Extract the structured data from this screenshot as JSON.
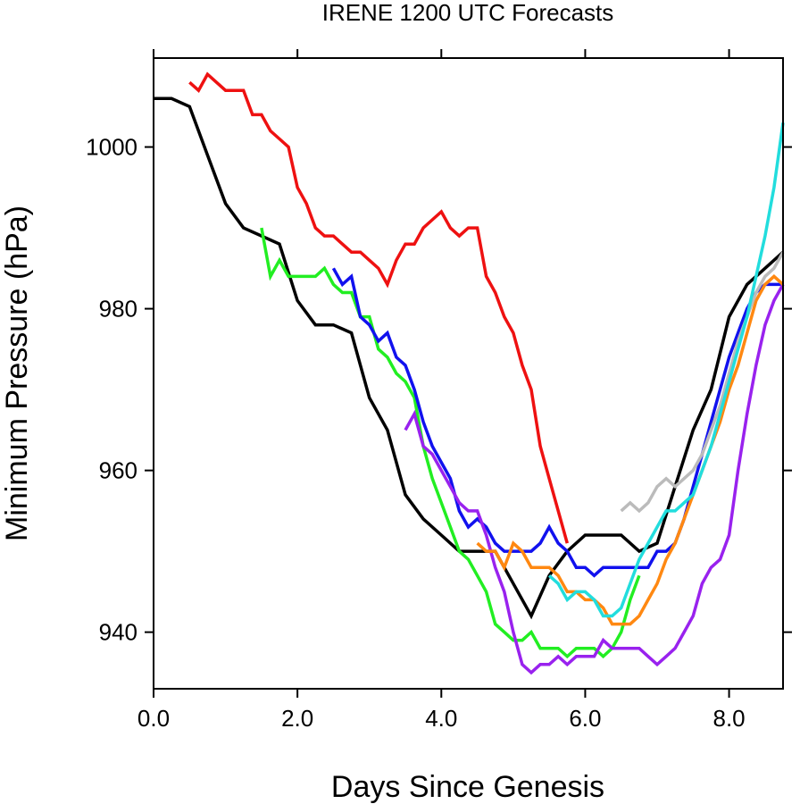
{
  "chart_data": {
    "type": "line",
    "title": "IRENE 1200 UTC Forecasts",
    "xlabel": "Days Since Genesis",
    "ylabel": "Minimum Pressure (hPa)",
    "xlim": [
      0,
      8.75
    ],
    "ylim": [
      933,
      1011
    ],
    "xticks": [
      0,
      2,
      4,
      6,
      8
    ],
    "xtick_labels": [
      "0.0",
      "2.0",
      "4.0",
      "6.0",
      "8.0"
    ],
    "yticks": [
      940,
      960,
      980,
      1000
    ],
    "ytick_labels": [
      "940",
      "960",
      "980",
      "1000"
    ],
    "grid": false,
    "series": [
      {
        "color": "#000000",
        "x": [
          0,
          0.25,
          0.5,
          0.75,
          1.0,
          1.25,
          1.5,
          1.75,
          2.0,
          2.25,
          2.5,
          2.75,
          3.0,
          3.25,
          3.5,
          3.75,
          4.0,
          4.25,
          4.5,
          4.75,
          5.0,
          5.25,
          5.5,
          5.75,
          6.0,
          6.25,
          6.5,
          6.75,
          7.0,
          7.25,
          7.5,
          7.75,
          8.0,
          8.25,
          8.5,
          8.75
        ],
        "y": [
          1006,
          1006,
          1005,
          999,
          993,
          990,
          989,
          988,
          981,
          978,
          978,
          977,
          969,
          965,
          957,
          954,
          952,
          950,
          950,
          950,
          946,
          942,
          947,
          950,
          952,
          952,
          952,
          950,
          951,
          958,
          965,
          970,
          979,
          983,
          985,
          987
        ]
      },
      {
        "color": "#ee1111",
        "x": [
          0.5,
          0.625,
          0.75,
          0.875,
          1.0,
          1.125,
          1.25,
          1.375,
          1.5,
          1.625,
          1.75,
          1.875,
          2.0,
          2.125,
          2.25,
          2.375,
          2.5,
          2.625,
          2.75,
          2.875,
          3.0,
          3.125,
          3.25,
          3.375,
          3.5,
          3.625,
          3.75,
          3.875,
          4.0,
          4.125,
          4.25,
          4.375,
          4.5,
          4.625,
          4.75,
          4.875,
          5.0,
          5.125,
          5.25,
          5.375,
          5.5,
          5.625,
          5.75
        ],
        "y": [
          1008,
          1007,
          1009,
          1008,
          1007,
          1007,
          1007,
          1004,
          1004,
          1002,
          1001,
          1000,
          995,
          993,
          990,
          989,
          989,
          988,
          987,
          987,
          986,
          985,
          983,
          986,
          988,
          988,
          990,
          991,
          992,
          990,
          989,
          990,
          990,
          984,
          982,
          979,
          977,
          973,
          970,
          963,
          959,
          955,
          951
        ]
      },
      {
        "color": "#22ee22",
        "x": [
          1.5,
          1.625,
          1.75,
          1.875,
          2.0,
          2.125,
          2.25,
          2.375,
          2.5,
          2.625,
          2.75,
          2.875,
          3.0,
          3.125,
          3.25,
          3.375,
          3.5,
          3.625,
          3.75,
          3.875,
          4.0,
          4.125,
          4.25,
          4.375,
          4.5,
          4.625,
          4.75,
          4.875,
          5.0,
          5.125,
          5.25,
          5.375,
          5.5,
          5.625,
          5.75,
          5.875,
          6.0,
          6.125,
          6.25,
          6.375,
          6.5,
          6.625,
          6.75
        ],
        "y": [
          990,
          984,
          986,
          984,
          984,
          984,
          984,
          985,
          983,
          982,
          982,
          979,
          979,
          975,
          974,
          972,
          971,
          969,
          963,
          959,
          956,
          953,
          950,
          949,
          947,
          945,
          941,
          940,
          939,
          939,
          940,
          938,
          938,
          938,
          937,
          938,
          938,
          938,
          937,
          938,
          940,
          944,
          947
        ]
      },
      {
        "color": "#1111ee",
        "x": [
          2.5,
          2.625,
          2.75,
          2.875,
          3.0,
          3.125,
          3.25,
          3.375,
          3.5,
          3.625,
          3.75,
          3.875,
          4.0,
          4.125,
          4.25,
          4.375,
          4.5,
          4.625,
          4.75,
          4.875,
          5.0,
          5.125,
          5.25,
          5.375,
          5.5,
          5.625,
          5.75,
          5.875,
          6.0,
          6.125,
          6.25,
          6.375,
          6.5,
          6.625,
          6.75,
          6.875,
          7.0,
          7.125,
          7.25,
          7.375,
          7.5,
          7.625,
          7.75,
          7.875,
          8.0,
          8.125,
          8.25,
          8.375,
          8.5,
          8.625,
          8.75
        ],
        "y": [
          985,
          983,
          984,
          979,
          978,
          976,
          977,
          974,
          973,
          970,
          966,
          963,
          961,
          959,
          955,
          953,
          954,
          953,
          951,
          950,
          950,
          950,
          950,
          951,
          953,
          951,
          950,
          948,
          948,
          947,
          948,
          948,
          948,
          948,
          948,
          948,
          950,
          950,
          951,
          954,
          958,
          962,
          966,
          970,
          974,
          977,
          980,
          982,
          983,
          983,
          983
        ]
      },
      {
        "color": "#9922ee",
        "x": [
          3.5,
          3.625,
          3.75,
          3.875,
          4.0,
          4.125,
          4.25,
          4.375,
          4.5,
          4.625,
          4.75,
          4.875,
          5.0,
          5.125,
          5.25,
          5.375,
          5.5,
          5.625,
          5.75,
          5.875,
          6.0,
          6.125,
          6.25,
          6.375,
          6.5,
          6.625,
          6.75,
          6.875,
          7.0,
          7.125,
          7.25,
          7.375,
          7.5,
          7.625,
          7.75,
          7.875,
          8.0,
          8.125,
          8.25,
          8.375,
          8.5,
          8.625,
          8.75
        ],
        "y": [
          965,
          967,
          963,
          962,
          960,
          958,
          956,
          955,
          955,
          952,
          948,
          945,
          940,
          936,
          935,
          936,
          936,
          937,
          936,
          937,
          937,
          937,
          939,
          938,
          938,
          938,
          938,
          937,
          936,
          937,
          938,
          940,
          942,
          946,
          948,
          949,
          952,
          960,
          967,
          973,
          978,
          981,
          983
        ]
      },
      {
        "color": "#ff8811",
        "x": [
          4.5,
          4.625,
          4.75,
          4.875,
          5.0,
          5.125,
          5.25,
          5.375,
          5.5,
          5.625,
          5.75,
          5.875,
          6.0,
          6.125,
          6.25,
          6.375,
          6.5,
          6.625,
          6.75,
          6.875,
          7.0,
          7.125,
          7.25,
          7.375,
          7.5,
          7.625,
          7.75,
          7.875,
          8.0,
          8.125,
          8.25,
          8.375,
          8.5,
          8.625,
          8.75
        ],
        "y": [
          951,
          950,
          950,
          948,
          951,
          950,
          948,
          948,
          948,
          947,
          945,
          945,
          944,
          944,
          943,
          941,
          941,
          941,
          942,
          944,
          946,
          949,
          951,
          954,
          957,
          960,
          963,
          966,
          970,
          973,
          977,
          981,
          983,
          984,
          983
        ]
      },
      {
        "color": "#bbbbbb",
        "x": [
          6.5,
          6.625,
          6.75,
          6.875,
          7.0,
          7.125,
          7.25,
          7.375,
          7.5,
          7.625,
          7.75,
          7.875,
          8.0,
          8.125,
          8.25,
          8.375,
          8.5,
          8.625,
          8.75
        ],
        "y": [
          955,
          956,
          955,
          956,
          958,
          959,
          958,
          959,
          960,
          962,
          965,
          968,
          972,
          976,
          979,
          982,
          984,
          985,
          987
        ]
      },
      {
        "color": "#22dddd",
        "x": [
          5.5,
          5.625,
          5.75,
          5.875,
          6.0,
          6.125,
          6.25,
          6.375,
          6.5,
          6.625,
          6.75,
          6.875,
          7.0,
          7.125,
          7.25,
          7.375,
          7.5,
          7.625,
          7.75,
          7.875,
          8.0,
          8.125,
          8.25,
          8.375,
          8.5,
          8.625,
          8.75
        ],
        "y": [
          947,
          946,
          944,
          945,
          945,
          944,
          942,
          942,
          943,
          946,
          949,
          951,
          953,
          955,
          955,
          956,
          957,
          960,
          963,
          967,
          971,
          975,
          979,
          984,
          989,
          995,
          1003
        ]
      }
    ]
  }
}
